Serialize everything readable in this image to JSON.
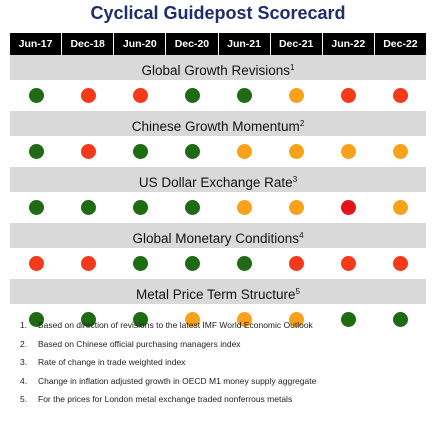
{
  "title": "Cyclical Guidepost Scorecard",
  "columns": [
    "Jun-17",
    "Dec-18",
    "Jun-20",
    "Dec-20",
    "Jun-21",
    "Dec-21",
    "Jun-22",
    "Dec-22"
  ],
  "colors": {
    "green": "#1e6b14",
    "red": "#f53a1c",
    "orange": "#f7a21a",
    "dark_red": "#e3141b",
    "header_bg": "#000000",
    "label_bg": "#d9d9d9",
    "title": "#1f2d6b"
  },
  "metrics": [
    {
      "label": "Global Growth Revisions",
      "footnote": "1",
      "signals": [
        "green",
        "red",
        "red",
        "green",
        "green",
        "orange",
        "red",
        "red"
      ]
    },
    {
      "label": "Chinese Growth Momentum",
      "footnote": "2",
      "signals": [
        "green",
        "red",
        "green",
        "green",
        "orange",
        "orange",
        "orange",
        "orange"
      ]
    },
    {
      "label": "US Dollar Exchange Rate",
      "footnote": "3",
      "signals": [
        "green",
        "green",
        "green",
        "green",
        "orange",
        "orange",
        "dark_red",
        "orange"
      ]
    },
    {
      "label": "Global Monetary Conditions",
      "footnote": "4",
      "signals": [
        "red",
        "red",
        "green",
        "green",
        "green",
        "red",
        "red",
        "red"
      ]
    },
    {
      "label": "Metal Price Term Structure",
      "footnote": "5",
      "signals": [
        "green",
        "green",
        "green",
        "orange",
        "orange",
        "orange",
        "green",
        "green"
      ]
    }
  ],
  "notes": [
    {
      "num": "1.",
      "text": "Based on direction of revisions to the latest IMF World Economic Outlook"
    },
    {
      "num": "2.",
      "text": "Based on Chinese official purchasing managers index"
    },
    {
      "num": "3.",
      "text": "Rate of change in trade weighted index"
    },
    {
      "num": "4.",
      "text": "Change in inflation adjusted growth in OECD M1 money supply aggregate"
    },
    {
      "num": "5.",
      "text": "For the prices for London metal exchange traded nonferrous metals"
    }
  ]
}
